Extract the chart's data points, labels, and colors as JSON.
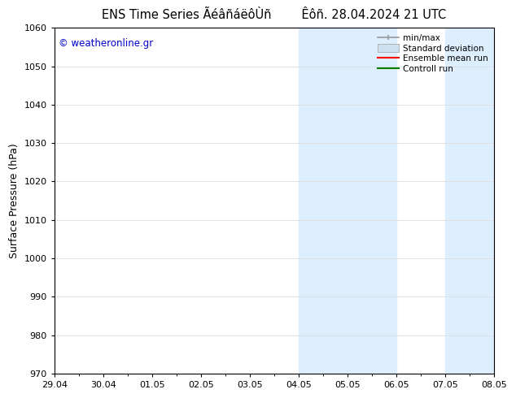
{
  "title_left": "ENS Time Series ÃéâñáëôÙñ",
  "title_right": "Êôñ. 28.04.2024 21 UTC",
  "ylabel": "Surface Pressure (hPa)",
  "watermark": "© weatheronline.gr",
  "watermark_color": "#0000cc",
  "ylim": [
    970,
    1060
  ],
  "yticks": [
    970,
    980,
    990,
    1000,
    1010,
    1020,
    1030,
    1040,
    1050,
    1060
  ],
  "xtick_labels": [
    "29.04",
    "30.04",
    "01.05",
    "02.05",
    "03.05",
    "04.05",
    "05.05",
    "06.05",
    "07.05",
    "08.05"
  ],
  "xtick_positions": [
    0,
    1,
    2,
    3,
    4,
    5,
    6,
    7,
    8,
    9
  ],
  "xlim": [
    0,
    9
  ],
  "shaded_regions": [
    {
      "xmin": 5.0,
      "xmax": 7.0,
      "color": "#ddeeff"
    },
    {
      "xmin": 8.0,
      "xmax": 9.0,
      "color": "#ddeeff"
    }
  ],
  "legend_entries": [
    {
      "label": "min/max",
      "color": "#999999",
      "type": "line_with_caps"
    },
    {
      "label": "Standard deviation",
      "color": "#cce0f0",
      "type": "filled_box"
    },
    {
      "label": "Ensemble mean run",
      "color": "red",
      "type": "line"
    },
    {
      "label": "Controll run",
      "color": "green",
      "type": "line"
    }
  ],
  "axis_color": "#000000",
  "background_color": "#ffffff",
  "grid_color": "#dddddd",
  "title_fontsize": 10.5,
  "label_fontsize": 9,
  "tick_fontsize": 8
}
